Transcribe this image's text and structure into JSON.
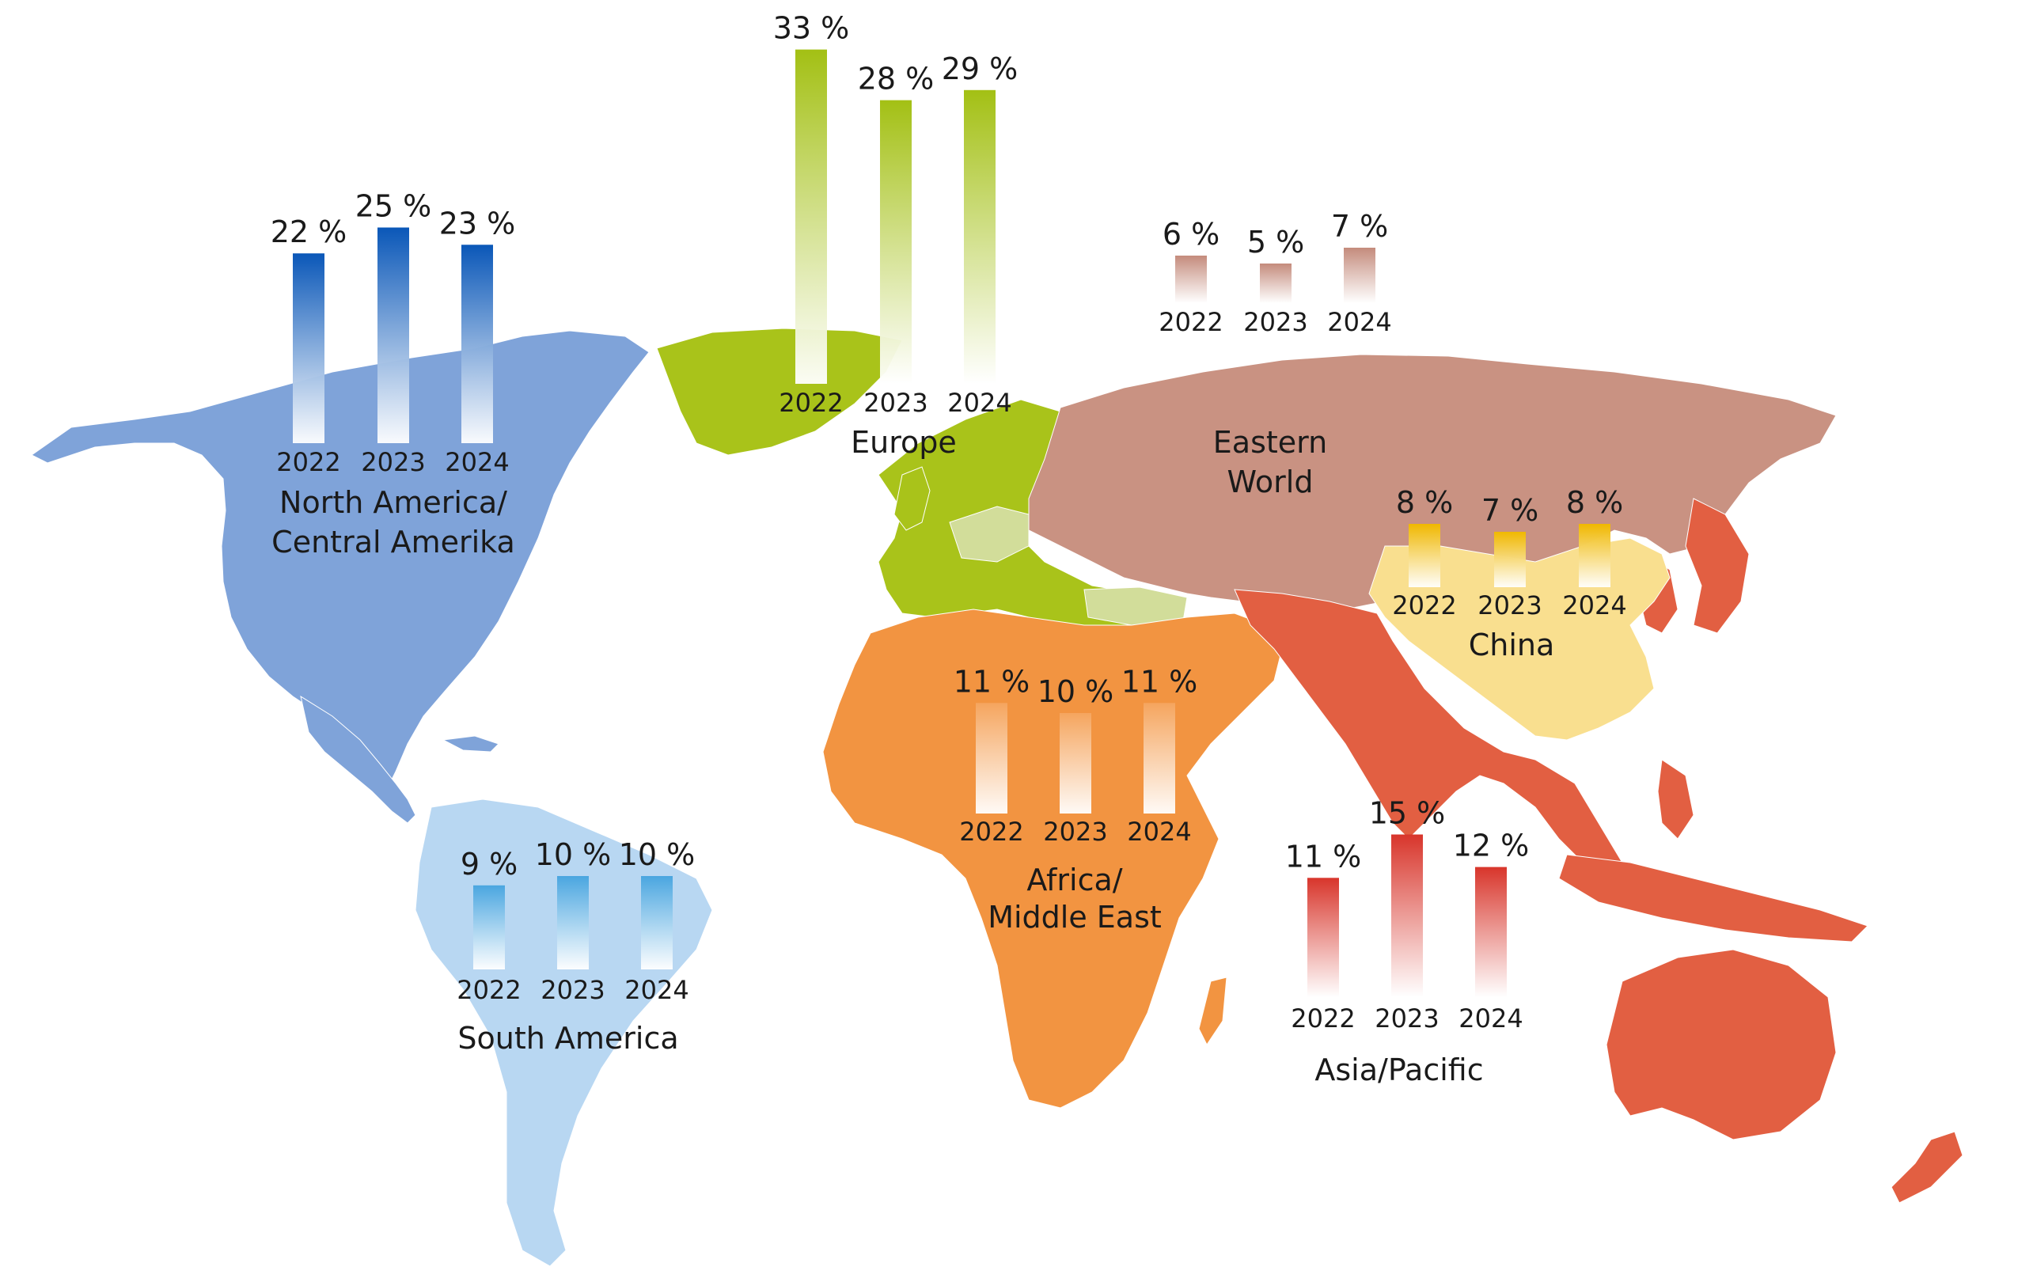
{
  "colors": {
    "north_america": "#7fa3d9",
    "north_america_bar": "#0a57b8",
    "south_america": "#b8d7f2",
    "south_america_bar": "#4aa6e0",
    "europe": "#a9c31a",
    "europe_light": "#d2dd9a",
    "europe_bar": "#a3c014",
    "africa_me": "#f29441",
    "africa_me_bar": "#f5a55e",
    "eastern_world": "#c99282",
    "eastern_world_bar": "#c48b7c",
    "china": "#f9df8f",
    "china_bar": "#f0b800",
    "asia_pacific": "#e25f42",
    "asia_pacific_bar": "#d8352b"
  },
  "chart_data": {
    "type": "bar",
    "title": "",
    "unit": "%",
    "categories": [
      "2022",
      "2023",
      "2024"
    ],
    "ylim": [
      0,
      35
    ],
    "series": [
      {
        "name": "North America/\nCentral Amerika",
        "label_lines": [
          "North America/",
          "Central Amerika"
        ],
        "values": [
          22,
          25,
          23
        ],
        "value_labels": [
          "22 %",
          "25 %",
          "23 %"
        ],
        "color_key": "north_america_bar"
      },
      {
        "name": "South America",
        "label_lines": [
          "South America"
        ],
        "values": [
          9,
          10,
          10
        ],
        "value_labels": [
          "9 %",
          "10 %",
          "10 %"
        ],
        "color_key": "south_america_bar"
      },
      {
        "name": "Europe",
        "label_lines": [
          "Europe"
        ],
        "values": [
          33,
          28,
          29
        ],
        "value_labels": [
          "33 %",
          "28 %",
          "29 %"
        ],
        "color_key": "europe_bar"
      },
      {
        "name": "Eastern World",
        "label_lines": [
          "Eastern",
          "World"
        ],
        "values": [
          6,
          5,
          7
        ],
        "value_labels": [
          "6 %",
          "5 %",
          "7 %"
        ],
        "color_key": "eastern_world_bar"
      },
      {
        "name": "China",
        "label_lines": [
          "China"
        ],
        "values": [
          8,
          7,
          8
        ],
        "value_labels": [
          "8 %",
          "7 %",
          "8 %"
        ],
        "color_key": "china_bar"
      },
      {
        "name": "Africa/\nMiddle East",
        "label_lines": [
          "Africa/",
          "Middle East"
        ],
        "values": [
          11,
          10,
          11
        ],
        "value_labels": [
          "11 %",
          "10 %",
          "11 %"
        ],
        "color_key": "africa_me_bar"
      },
      {
        "name": "Asia/Pacific",
        "label_lines": [
          "Asia/Pacific"
        ],
        "values": [
          11,
          15,
          12
        ],
        "value_labels": [
          "11 %",
          "15 %",
          "12 %"
        ],
        "color_key": "asia_pacific_bar"
      }
    ]
  }
}
